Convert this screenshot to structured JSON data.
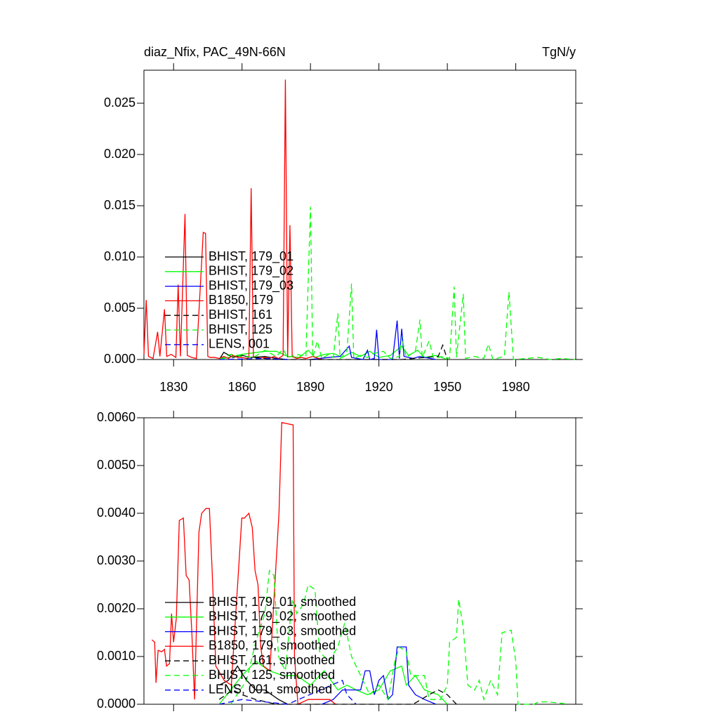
{
  "chart_data": [
    {
      "type": "line",
      "title": "diaz_Nfix, PAC_49N-66N",
      "units": "TgN/y",
      "xlim": [
        1817,
        2006.3
      ],
      "ylim": [
        0,
        0.02822
      ],
      "xticks": [
        1830,
        1860,
        1890,
        1920,
        1950,
        1980
      ],
      "yticks": [
        {
          "value": 0,
          "label": "0.000"
        },
        {
          "value": 0.005,
          "label": "0.005"
        },
        {
          "value": 0.01,
          "label": "0.010"
        },
        {
          "value": 0.015,
          "label": "0.015"
        },
        {
          "value": 0.02,
          "label": "0.020"
        },
        {
          "value": 0.025,
          "label": "0.025"
        }
      ],
      "legend": "lower-left",
      "series": [
        {
          "name": "BHIST, 179_01",
          "color": "#000000",
          "dash": false,
          "x": [
            1850,
            1852,
            1856,
            1860,
            1864,
            1870,
            1875,
            1880
          ],
          "values": [
            0,
            0.0007,
            0.0002,
            0.0004,
            0.0002,
            0.0003,
            0.0001,
            0
          ]
        },
        {
          "name": "BHIST, 179_02",
          "color": "#00ff00",
          "dash": false,
          "x": [
            1850,
            1860,
            1870,
            1875,
            1880,
            1885,
            1889,
            1892,
            1896,
            1900,
            1904,
            1908,
            1912,
            1916,
            1920,
            1925,
            1930,
            1933,
            1937,
            1940,
            1945,
            1950
          ],
          "values": [
            0,
            0.0005,
            0.0008,
            0.0008,
            0.0003,
            0.0002,
            0.0009,
            0.0002,
            0.0005,
            0.0006,
            0.0002,
            0.0007,
            0.0003,
            0.0008,
            0.0002,
            0.0004,
            0.0013,
            0.0004,
            0.0009,
            0.0002,
            0.0004,
            0
          ]
        },
        {
          "name": "BHIST, 179_03",
          "color": "#0000ff",
          "dash": false,
          "x": [
            1890,
            1898,
            1903,
            1907,
            1908,
            1913,
            1915,
            1916,
            1918,
            1919,
            1920,
            1926,
            1928,
            1929,
            1930,
            1931,
            1935,
            1938,
            1945
          ],
          "values": [
            0,
            0.0002,
            0.0003,
            0.0013,
            0.0002,
            0,
            0.0009,
            0,
            0.0001,
            0.0029,
            0,
            0,
            0.0038,
            0.0001,
            0.003,
            0.0003,
            0.0001,
            0.0003,
            0
          ]
        },
        {
          "name": "B1850, 179",
          "color": "#ff0000",
          "dash": false,
          "x": [
            1817,
            1818,
            1819,
            1821,
            1823,
            1824,
            1826,
            1827,
            1829,
            1831,
            1832,
            1833,
            1835,
            1836,
            1838,
            1840,
            1843,
            1844,
            1845,
            1846,
            1848,
            1850,
            1852,
            1854,
            1856,
            1858,
            1860,
            1862,
            1863,
            1864,
            1865,
            1867,
            1870,
            1872,
            1874,
            1876,
            1878,
            1879,
            1880,
            1881,
            1882,
            1884,
            1886,
            1888,
            1891,
            1895
          ],
          "values": [
            0.0005,
            0.0058,
            0.0003,
            0.0001,
            0.0027,
            0.0003,
            0.0049,
            0.0003,
            0.0005,
            0.0002,
            0.0073,
            0.0003,
            0.0142,
            0.0004,
            0.0002,
            0.0001,
            0.0124,
            0.0123,
            0.0003,
            0.0002,
            0.0002,
            0.0001,
            0.0003,
            0.0001,
            0.0004,
            0.0002,
            0.0002,
            0.0001,
            0.0002,
            0.0167,
            0.0003,
            0.0001,
            0.0002,
            0.0001,
            0.0003,
            0.0001,
            0.0004,
            0.0273,
            0.0002,
            0.0131,
            0.0003,
            0.0001,
            0.0002,
            0.0001,
            0.0003,
            0
          ]
        },
        {
          "name": "BHIST, 161",
          "color": "#000000",
          "dash": true,
          "x": [
            1850,
            1855,
            1860,
            1870,
            1875,
            1930,
            1940,
            1946,
            1948,
            1950
          ],
          "values": [
            0,
            0.0005,
            0.0003,
            0.0001,
            0,
            0,
            0.0002,
            0.0003,
            0.0014,
            0
          ]
        },
        {
          "name": "BHIST, 125",
          "color": "#00ff00",
          "dash": true,
          "x": [
            1850,
            1855,
            1860,
            1865,
            1870,
            1875,
            1878,
            1880,
            1884,
            1888,
            1890,
            1891,
            1893,
            1895,
            1898,
            1900,
            1902,
            1903,
            1906,
            1908,
            1909,
            1912,
            1915,
            1918,
            1922,
            1925,
            1929,
            1930,
            1932,
            1936,
            1938,
            1939,
            1942,
            1944,
            1948,
            1951,
            1953,
            1954,
            1957,
            1958,
            1962,
            1966,
            1968,
            1970,
            1975,
            1977,
            1979,
            1990,
            1995,
            2000,
            2006
          ],
          "values": [
            0,
            0.0005,
            0.0003,
            0.0002,
            0.0009,
            0.0003,
            0.001,
            0.0002,
            0.0005,
            0.0003,
            0.0149,
            0.0002,
            0.0018,
            0.0001,
            0.0005,
            0.0002,
            0.0045,
            0.0001,
            0.0008,
            0.0074,
            0.0001,
            0.0004,
            0.0002,
            0.0006,
            0.0008,
            0.0001,
            0.0003,
            0.0022,
            0.0002,
            0.0008,
            0.0039,
            0.0002,
            0.0018,
            0.0001,
            0.0003,
            0.0001,
            0.0071,
            0.0002,
            0.0064,
            0.0001,
            0.0003,
            0.0001,
            0.0015,
            0,
            0.0003,
            0.0066,
            0,
            0.0002,
            0,
            0.0001,
            0
          ]
        },
        {
          "name": "LENS, 001",
          "color": "#0000ff",
          "dash": true,
          "x": [
            1850,
            1870,
            1880
          ],
          "values": [
            0,
            0.0001,
            0
          ]
        }
      ]
    },
    {
      "type": "line",
      "xlim": [
        1817,
        2006.3
      ],
      "ylim": [
        0,
        0.006
      ],
      "xticks": [
        1830,
        1860,
        1890,
        1920,
        1950,
        1980
      ],
      "xtick_labels": false,
      "yticks": [
        {
          "value": 0,
          "label": "0.0000"
        },
        {
          "value": 0.001,
          "label": "0.0010"
        },
        {
          "value": 0.002,
          "label": "0.0020"
        },
        {
          "value": 0.003,
          "label": "0.0030"
        },
        {
          "value": 0.004,
          "label": "0.0040"
        },
        {
          "value": 0.005,
          "label": "0.0050"
        },
        {
          "value": 0.006,
          "label": "0.0060"
        }
      ],
      "legend": "lower-left",
      "series": [
        {
          "name": "BHIST, 179_01, smoothed",
          "color": "#000000",
          "dash": false,
          "x": [
            1850,
            1854,
            1858,
            1862,
            1866,
            1870,
            1876,
            1880
          ],
          "values": [
            0.0004,
            0.0005,
            0.0008,
            0.0005,
            0.0003,
            0.0003,
            0.0001,
            0
          ]
        },
        {
          "name": "BHIST, 179_02, smoothed",
          "color": "#00ff00",
          "dash": false,
          "x": [
            1850,
            1860,
            1866,
            1872,
            1878,
            1884,
            1890,
            1896,
            1902,
            1906,
            1910,
            1915,
            1920,
            1925,
            1930,
            1932,
            1936,
            1940,
            1946,
            1950
          ],
          "values": [
            0,
            0.0006,
            0.0009,
            0.0007,
            0.0006,
            0.0006,
            0.0004,
            0.0007,
            0.0003,
            0.0004,
            0.0003,
            0.0002,
            0.0003,
            0.0007,
            0.0008,
            0.0004,
            0.0006,
            0.0003,
            0.0002,
            0
          ]
        },
        {
          "name": "BHIST, 179_03, smoothed",
          "color": "#0000ff",
          "dash": false,
          "x": [
            1895,
            1900,
            1904,
            1908,
            1912,
            1914,
            1916,
            1918,
            1920,
            1922,
            1924,
            1926,
            1928,
            1932,
            1933,
            1936,
            1940,
            1945
          ],
          "values": [
            0,
            0.0001,
            0.0003,
            0.0003,
            0.0003,
            0.0007,
            0.0007,
            0.0002,
            0.0005,
            0.0006,
            0.0001,
            0.0002,
            0.0012,
            0.0012,
            0.0004,
            0.0002,
            0.0001,
            0
          ]
        },
        {
          "name": "B1850, 179, smoothed",
          "color": "#ff0000",
          "dash": false,
          "x": [
            1820.5,
            1821.7,
            1822.3,
            1823.2,
            1824.8,
            1826,
            1826.9,
            1828.2,
            1829.1,
            1830,
            1831.2,
            1832.5,
            1834.3,
            1835.5,
            1836.8,
            1838,
            1839.2,
            1841.1,
            1842.3,
            1844.2,
            1845.7,
            1846.9,
            1848.5,
            1852.2,
            1855.3,
            1859.9,
            1861.1,
            1863,
            1864.5,
            1865.7,
            1867,
            1868.2,
            1869.4,
            1872.2,
            1876.2,
            1877.4,
            1882.4,
            1883,
            1884.5,
            1889,
            1898.4,
            1901
          ],
          "values": [
            0.00135,
            0.0013,
            0.00045,
            0.00113,
            0.0011,
            0.00115,
            0.0008,
            0.00085,
            0.0019,
            0.0013,
            0.0018,
            0.00385,
            0.0039,
            0.0027,
            0.0026,
            0.0015,
            0.0001,
            0.0036,
            0.004,
            0.0041,
            0.0041,
            0.0028,
            0.0008,
            0.0005,
            0.0004,
            0.0039,
            0.0039,
            0.004,
            0.0037,
            0.0028,
            0.0025,
            0.0012,
            0.0008,
            0.0007,
            0.004,
            0.0059,
            0.00585,
            0.001,
            0,
            0.0001,
            0.0001,
            0
          ]
        },
        {
          "name": "BHIST, 161, smoothed",
          "color": "#000000",
          "dash": true,
          "x": [
            1850,
            1856,
            1860,
            1866,
            1875,
            1935,
            1942,
            1946,
            1950,
            1954
          ],
          "values": [
            0.0001,
            0.0003,
            0.0002,
            0.0001,
            0,
            0,
            0.0002,
            0.0003,
            0.0002,
            0
          ]
        },
        {
          "name": "BHIST, 125, smoothed",
          "color": "#00ff00",
          "dash": true,
          "x": [
            1855,
            1862,
            1866,
            1870,
            1872,
            1874,
            1876,
            1879,
            1882,
            1884,
            1887,
            1889,
            1892,
            1894,
            1898,
            1902,
            1905,
            1908,
            1912,
            1916,
            1920,
            1924,
            1927,
            1929,
            1932,
            1934,
            1937,
            1940,
            1942,
            1947,
            1950,
            1951,
            1954,
            1955,
            1957,
            1959,
            1962,
            1964,
            1966,
            1969,
            1972,
            1974,
            1978,
            1980,
            1981,
            1988,
            1990,
            1994,
            2000,
            2003
          ],
          "values": [
            0,
            0.0005,
            0.0013,
            0.0019,
            0.0028,
            0.0027,
            0.001,
            0.0007,
            0.0022,
            0.0019,
            0.0021,
            0.0025,
            0.0024,
            0.0011,
            0.0009,
            0.0012,
            0.0017,
            0.001,
            0.0006,
            0.0002,
            0.0004,
            0.0001,
            0.0009,
            0.0012,
            0.0011,
            0.0006,
            0.0006,
            0.0006,
            0.0001,
            0.0001,
            0.0004,
            0.0013,
            0.0014,
            0.0022,
            0.0016,
            0.0004,
            0.0003,
            0.0005,
            0.0001,
            0.0005,
            0.0002,
            0.0015,
            0.00155,
            0.0009,
            0,
            0,
            5e-05,
            5e-05,
            2e-05,
            0
          ]
        },
        {
          "name": "LENS, 001, smoothed",
          "color": "#0000ff",
          "dash": true,
          "x": [
            1850,
            1860,
            1870,
            1880,
            1904,
            1906,
            1910
          ],
          "values": [
            0,
            0.0001,
            5e-05,
            0,
            0.0005,
            0.0002,
            0
          ]
        }
      ]
    }
  ]
}
